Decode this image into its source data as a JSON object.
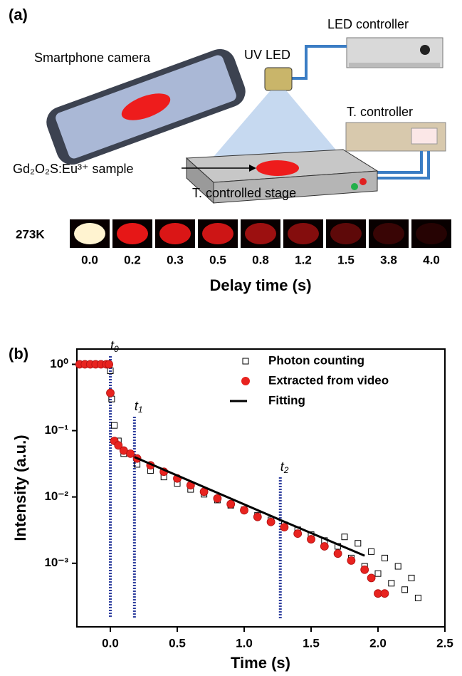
{
  "panel_a": {
    "label": "(a)",
    "led_controller": "LED controller",
    "camera": "Smartphone camera",
    "uv_led": "UV LED",
    "t_controller": "T. controller",
    "sample": "Gd₂O₂S:Eu³⁺ sample",
    "stage": "T. controlled stage",
    "temperature": "273K",
    "delay_times": [
      "0.0",
      "0.2",
      "0.3",
      "0.5",
      "0.8",
      "1.2",
      "1.5",
      "3.8",
      "4.0"
    ],
    "delay_axis": "Delay time (s)"
  },
  "chart_data": {
    "type": "scatter",
    "panel_label": "(b)",
    "x_label": "Time (s)",
    "y_label": "Intensity (a.u.)",
    "xlim": [
      -0.25,
      2.5
    ],
    "ylim": [
      0.00011,
      1.7
    ],
    "y_scale": "log",
    "legend": "upper right",
    "xticks": [
      {
        "value": 0,
        "label": "0.0"
      },
      0.5,
      {
        "value": 1,
        "label": "1.0"
      },
      1.5,
      {
        "value": 2,
        "label": "2.0"
      },
      2.5
    ],
    "yticks": [
      {
        "value": 1,
        "label": "10⁰"
      },
      {
        "value": 0.1,
        "label": "10⁻¹"
      },
      {
        "value": 0.01,
        "label": "10⁻²"
      },
      {
        "value": 0.001,
        "label": "10⁻³"
      }
    ],
    "series": [
      {
        "name": "Photon counting",
        "color": "#000000",
        "marker": "square",
        "x": [
          0.0,
          0.01,
          0.03,
          0.06,
          0.1,
          0.2,
          0.3,
          0.4,
          0.5,
          0.6,
          0.7,
          0.8,
          0.9,
          1.0,
          1.1,
          1.2,
          1.3,
          1.4,
          1.5,
          1.6,
          1.7,
          1.75,
          1.8,
          1.85,
          1.9,
          1.95,
          2.0,
          2.05,
          2.1,
          2.15,
          2.2,
          2.25,
          2.3
        ],
        "values": [
          0.8,
          0.3,
          0.12,
          0.07,
          0.045,
          0.031,
          0.025,
          0.02,
          0.016,
          0.013,
          0.011,
          0.009,
          0.0075,
          0.0064,
          0.0053,
          0.0045,
          0.0038,
          0.0032,
          0.0027,
          0.0022,
          0.0018,
          0.0025,
          0.0012,
          0.002,
          0.0009,
          0.0015,
          0.0007,
          0.0012,
          0.0005,
          0.0009,
          0.0004,
          0.0006,
          0.0003
        ]
      },
      {
        "name": "Extracted from video",
        "color": "#e8231f",
        "marker": "circle",
        "x": [
          -0.23,
          -0.19,
          -0.15,
          -0.11,
          -0.07,
          -0.03,
          -0.01,
          0.0,
          0.03,
          0.06,
          0.1,
          0.15,
          0.2,
          0.3,
          0.4,
          0.5,
          0.6,
          0.7,
          0.8,
          0.9,
          1.0,
          1.1,
          1.2,
          1.3,
          1.4,
          1.5,
          1.6,
          1.7,
          1.8,
          1.9,
          1.95,
          2.0,
          2.05
        ],
        "values": [
          1,
          1,
          1,
          1,
          1,
          1,
          1,
          0.37,
          0.07,
          0.06,
          0.05,
          0.045,
          0.038,
          0.03,
          0.024,
          0.019,
          0.015,
          0.012,
          0.0095,
          0.0078,
          0.0063,
          0.005,
          0.0042,
          0.0035,
          0.0028,
          0.0023,
          0.0018,
          0.0014,
          0.0011,
          0.0008,
          0.0006,
          0.00035,
          0.00035
        ]
      },
      {
        "name": "Fitting",
        "color": "#000000",
        "marker": "line",
        "x": [
          0.18,
          1.27,
          1.9
        ],
        "values": [
          0.04,
          0.0045,
          0.0013
        ]
      }
    ],
    "annotations": [
      {
        "text": "t",
        "sub": "0",
        "x": 0
      },
      {
        "text": "t",
        "sub": "1",
        "x": 0.18
      },
      {
        "text": "t",
        "sub": "2",
        "x": 1.27
      }
    ],
    "annotation_color": "#2f3f9e"
  }
}
